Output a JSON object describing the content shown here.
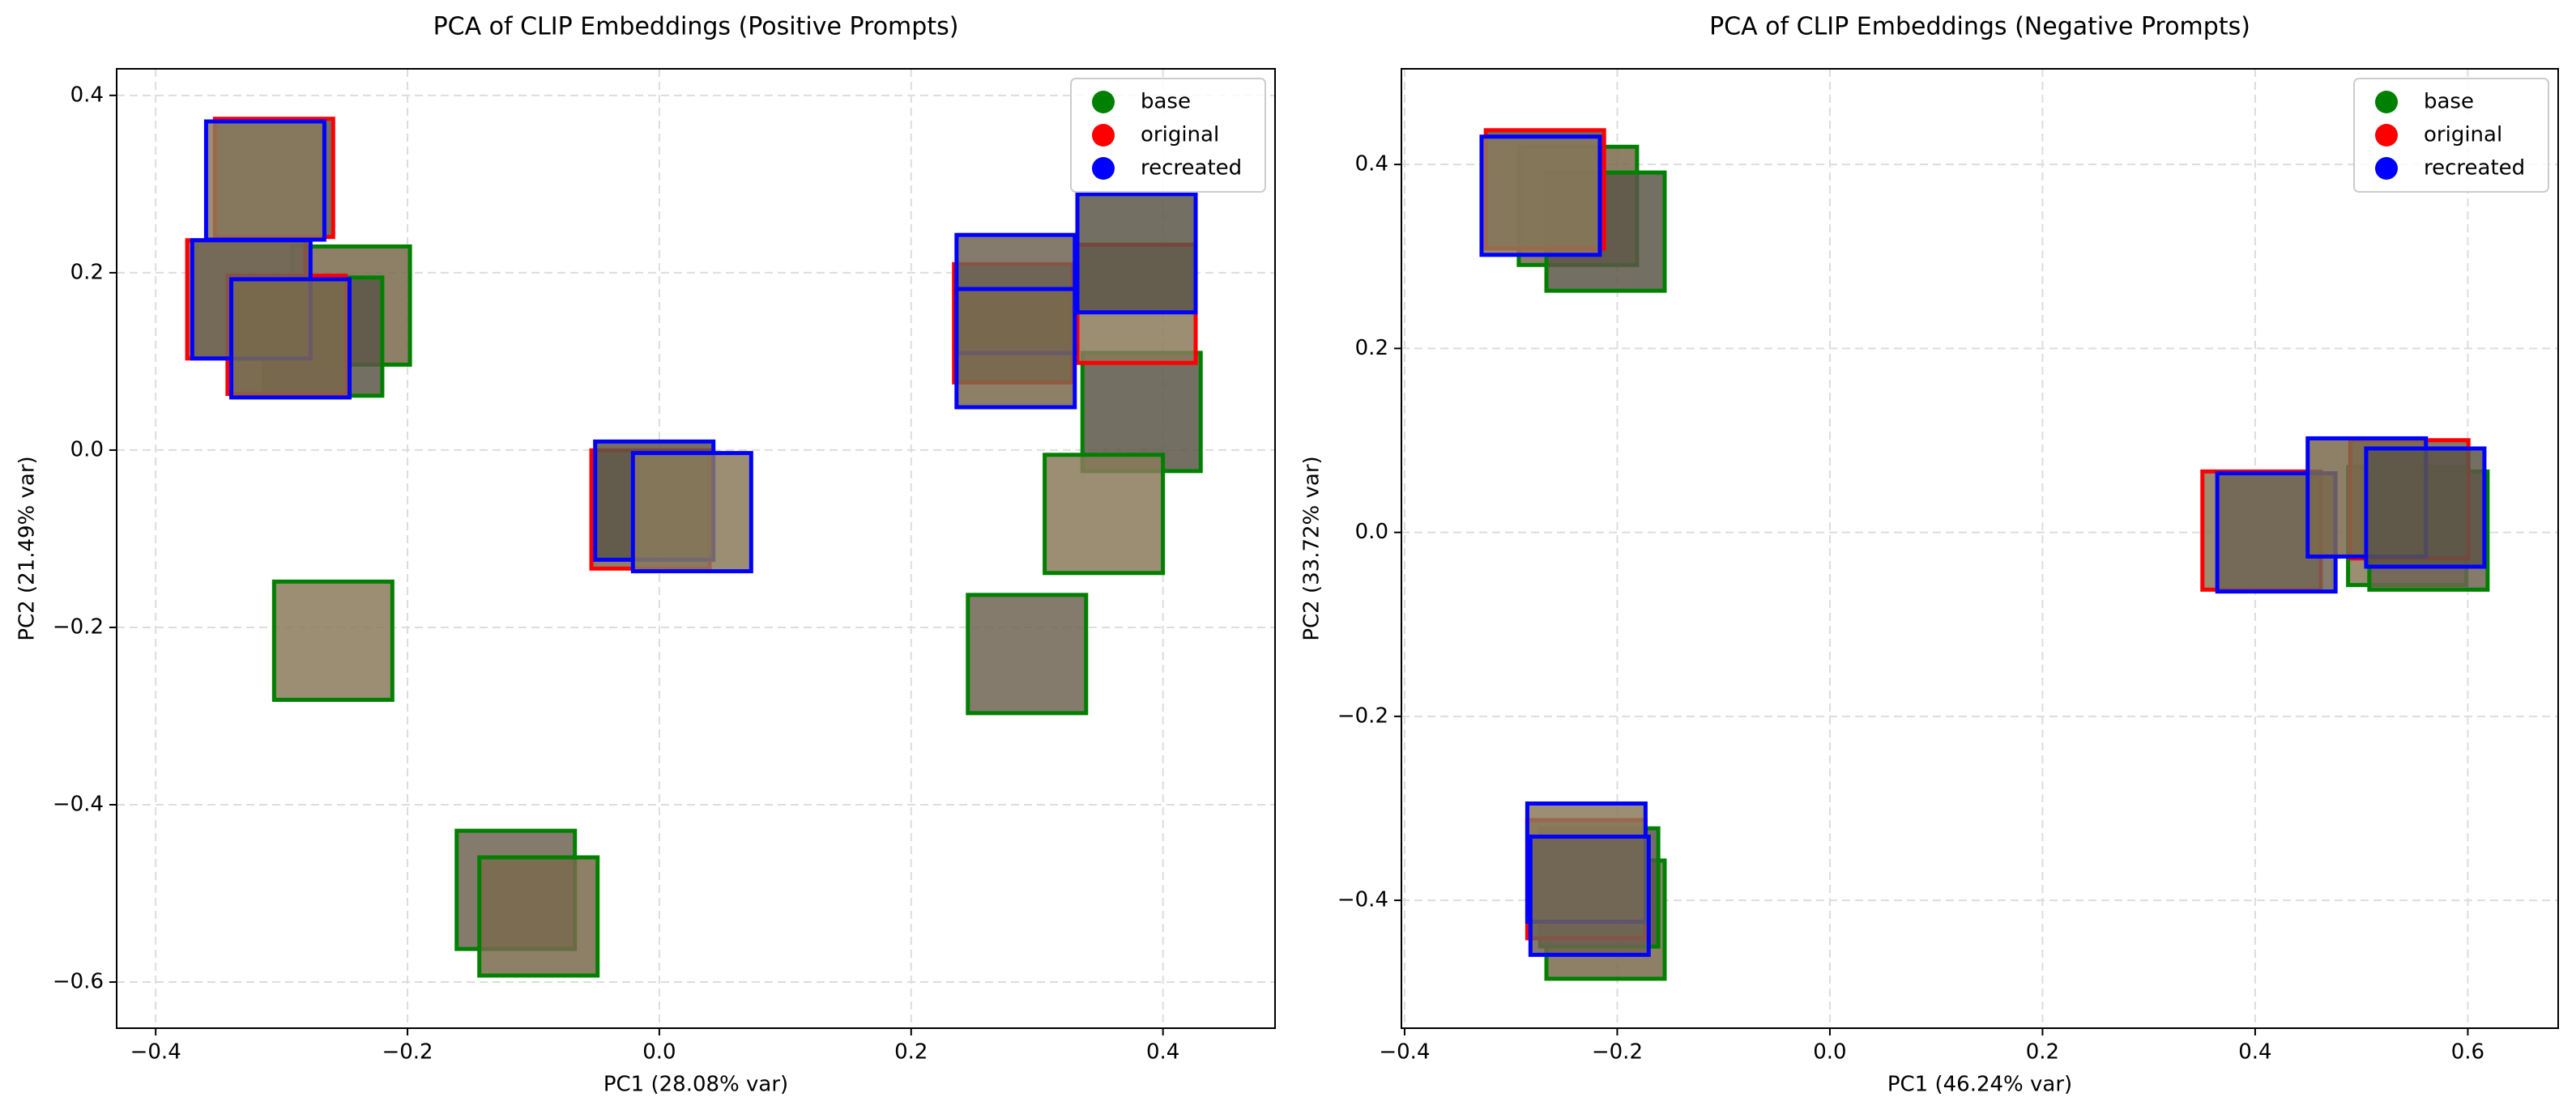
{
  "chart_data": [
    {
      "type": "scatter",
      "title": "PCA of CLIP Embeddings (Positive Prompts)",
      "x_label": "PC1 (28.08% var)",
      "y_label": "PC2 (21.49% var)",
      "xlim": [
        -0.431,
        0.489
      ],
      "ylim": [
        -0.652,
        0.43
      ],
      "xticks": [
        {
          "value": -0.4,
          "label": "−0.4"
        },
        {
          "value": -0.2,
          "label": "−0.2"
        },
        {
          "value": 0,
          "label": "0.0"
        },
        0.2,
        0.4
      ],
      "yticks": [
        {
          "value": -0.6,
          "label": "−0.6"
        },
        {
          "value": -0.4,
          "label": "−0.4"
        },
        {
          "value": -0.2,
          "label": "−0.2"
        },
        {
          "value": 0,
          "label": "0.0"
        },
        0.2,
        0.4
      ],
      "grid": true,
      "legend": "upper right",
      "series": [
        {
          "name": "base",
          "color": "#008000",
          "x": [
            -0.245,
            -0.267,
            -0.259,
            -0.114,
            -0.096,
            0.383,
            0.353,
            0.292
          ],
          "values": [
            0.163,
            0.128,
            -0.215,
            -0.496,
            -0.526,
            0.043,
            -0.072,
            -0.23
          ]
        },
        {
          "name": "original",
          "color": "#ff0000",
          "x": [
            -0.306,
            -0.328,
            -0.296,
            -0.007,
            0.281,
            0.379
          ],
          "values": [
            0.307,
            0.17,
            0.13,
            -0.067,
            0.143,
            0.165
          ]
        },
        {
          "name": "recreated",
          "color": "#0000ff",
          "x": [
            -0.313,
            -0.324,
            -0.293,
            -0.004,
            0.026,
            0.283,
            0.283,
            0.379
          ],
          "values": [
            0.304,
            0.17,
            0.126,
            -0.057,
            -0.07,
            0.176,
            0.115,
            0.222
          ]
        }
      ]
    },
    {
      "type": "scatter",
      "title": "PCA of CLIP Embeddings (Negative Prompts)",
      "x_label": "PC1 (46.24% var)",
      "y_label": "PC2 (33.72% var)",
      "xlim": [
        -0.403,
        0.685
      ],
      "ylim": [
        -0.539,
        0.504
      ],
      "xticks": [
        {
          "value": -0.4,
          "label": "−0.4"
        },
        {
          "value": -0.2,
          "label": "−0.2"
        },
        {
          "value": 0,
          "label": "0.0"
        },
        0.2,
        0.4,
        0.6
      ],
      "yticks": [
        {
          "value": -0.4,
          "label": "−0.4"
        },
        {
          "value": -0.2,
          "label": "−0.2"
        },
        {
          "value": 0,
          "label": "0.0"
        },
        0.2,
        0.4
      ],
      "grid": true,
      "legend": "upper right",
      "series": [
        {
          "name": "base",
          "color": "#008000",
          "x": [
            -0.237,
            -0.211,
            0.543,
            0.563,
            -0.211,
            -0.217
          ],
          "values": [
            0.355,
            0.327,
            0.007,
            0.002,
            -0.421,
            -0.386
          ]
        },
        {
          "name": "original",
          "color": "#ff0000",
          "x": [
            -0.268,
            0.406,
            0.545,
            -0.229
          ],
          "values": [
            0.373,
            0.002,
            0.036,
            -0.377
          ]
        },
        {
          "name": "recreated",
          "color": "#0000ff",
          "x": [
            -0.272,
            0.42,
            0.505,
            0.56,
            -0.229,
            -0.226
          ],
          "values": [
            0.366,
            0.0,
            0.038,
            0.027,
            -0.359,
            -0.395
          ]
        }
      ]
    }
  ]
}
